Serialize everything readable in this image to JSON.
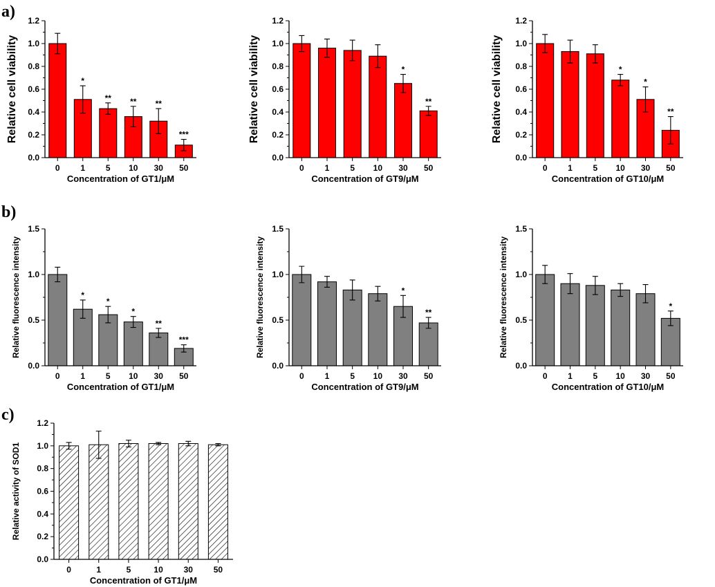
{
  "panel_labels": [
    "a)",
    "b)",
    "c)"
  ],
  "colors": {
    "red_bar": "#ff0000",
    "gray_bar": "#808080",
    "hatch_bar": "#ffffff",
    "outline": "#000000"
  },
  "chart_data": [
    {
      "type": "bar",
      "panel": "a",
      "title": "",
      "categories": [
        "0",
        "1",
        "5",
        "10",
        "30",
        "50"
      ],
      "values": [
        1.0,
        0.51,
        0.43,
        0.36,
        0.32,
        0.11
      ],
      "errors": [
        0.09,
        0.12,
        0.05,
        0.09,
        0.11,
        0.05
      ],
      "significance": [
        "",
        "*",
        "**",
        "**",
        "**",
        "***"
      ],
      "xlabel": "Concentration of GT1/μM",
      "ylabel": "Relative cell viability",
      "ylim": [
        0,
        1.2
      ],
      "yticks": [
        "0.0",
        "0.2",
        "0.4",
        "0.6",
        "0.8",
        "1.0",
        "1.2"
      ],
      "style": "red"
    },
    {
      "type": "bar",
      "panel": "a",
      "title": "",
      "categories": [
        "0",
        "1",
        "5",
        "10",
        "30",
        "50"
      ],
      "values": [
        1.0,
        0.96,
        0.94,
        0.89,
        0.65,
        0.41
      ],
      "errors": [
        0.07,
        0.08,
        0.09,
        0.1,
        0.08,
        0.04
      ],
      "significance": [
        "",
        "",
        "",
        "",
        "*",
        "**"
      ],
      "xlabel": "Concentration of GT9/μM",
      "ylabel": "Relative cell viability",
      "ylim": [
        0,
        1.2
      ],
      "yticks": [
        "0.0",
        "0.2",
        "0.4",
        "0.6",
        "0.8",
        "1.0",
        "1.2"
      ],
      "style": "red"
    },
    {
      "type": "bar",
      "panel": "a",
      "title": "",
      "categories": [
        "0",
        "1",
        "5",
        "10",
        "30",
        "50"
      ],
      "values": [
        1.0,
        0.93,
        0.91,
        0.68,
        0.51,
        0.24
      ],
      "errors": [
        0.08,
        0.1,
        0.08,
        0.05,
        0.11,
        0.12
      ],
      "significance": [
        "",
        "",
        "",
        "*",
        "*",
        "**"
      ],
      "xlabel": "Concentration of GT10/μM",
      "ylabel": "Relative cell viability",
      "ylim": [
        0,
        1.2
      ],
      "yticks": [
        "0.0",
        "0.2",
        "0.4",
        "0.6",
        "0.8",
        "1.0",
        "1.2"
      ],
      "style": "red"
    },
    {
      "type": "bar",
      "panel": "b",
      "title": "",
      "categories": [
        "0",
        "1",
        "5",
        "10",
        "30",
        "50"
      ],
      "values": [
        1.0,
        0.62,
        0.56,
        0.48,
        0.36,
        0.19
      ],
      "errors": [
        0.08,
        0.1,
        0.09,
        0.06,
        0.05,
        0.04
      ],
      "significance": [
        "",
        "*",
        "*",
        "*",
        "**",
        "***"
      ],
      "xlabel": "Concentration of GT1/μM",
      "ylabel": "Relative fluorescence intensity",
      "ylim": [
        0,
        1.5
      ],
      "yticks": [
        "0.0",
        "0.5",
        "1.0",
        "1.5"
      ],
      "style": "gray"
    },
    {
      "type": "bar",
      "panel": "b",
      "title": "",
      "categories": [
        "0",
        "1",
        "5",
        "10",
        "30",
        "50"
      ],
      "values": [
        1.0,
        0.92,
        0.83,
        0.79,
        0.65,
        0.47
      ],
      "errors": [
        0.09,
        0.06,
        0.11,
        0.08,
        0.12,
        0.06
      ],
      "significance": [
        "",
        "",
        "",
        "",
        "*",
        "**"
      ],
      "xlabel": "Concentration of GT9/μM",
      "ylabel": "Relative fluorescence intensity",
      "ylim": [
        0,
        1.5
      ],
      "yticks": [
        "0.0",
        "0.5",
        "1.0",
        "1.5"
      ],
      "style": "gray"
    },
    {
      "type": "bar",
      "panel": "b",
      "title": "",
      "categories": [
        "0",
        "1",
        "5",
        "10",
        "30",
        "50"
      ],
      "values": [
        1.0,
        0.9,
        0.88,
        0.83,
        0.79,
        0.52
      ],
      "errors": [
        0.1,
        0.11,
        0.1,
        0.07,
        0.1,
        0.08
      ],
      "significance": [
        "",
        "",
        "",
        "",
        "",
        "*"
      ],
      "xlabel": "Concentration of GT10/μM",
      "ylabel": "Relative fluorescence intensity",
      "ylim": [
        0,
        1.5
      ],
      "yticks": [
        "0.0",
        "0.5",
        "1.0",
        "1.5"
      ],
      "style": "gray"
    },
    {
      "type": "bar",
      "panel": "c",
      "title": "",
      "categories": [
        "0",
        "1",
        "5",
        "10",
        "30",
        "50"
      ],
      "values": [
        1.0,
        1.01,
        1.02,
        1.02,
        1.02,
        1.01
      ],
      "errors": [
        0.03,
        0.12,
        0.03,
        0.01,
        0.02,
        0.01
      ],
      "significance": [
        "",
        "",
        "",
        "",
        "",
        ""
      ],
      "xlabel": "Concentration of GT1/μM",
      "ylabel": "Relative activity of SOD1",
      "ylim": [
        0,
        1.2
      ],
      "yticks": [
        "0.0",
        "0.2",
        "0.4",
        "0.6",
        "0.8",
        "1.0",
        "1.2"
      ],
      "style": "hatch"
    }
  ]
}
